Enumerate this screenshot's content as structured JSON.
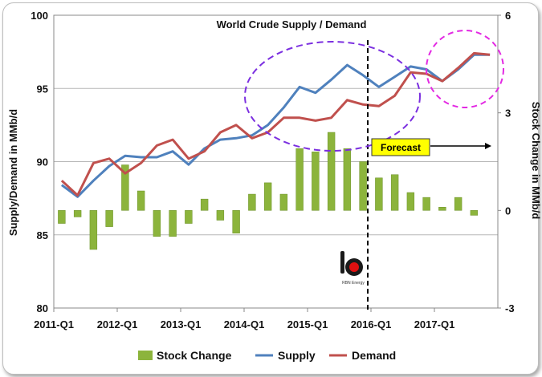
{
  "chart_data": {
    "type": "bar+line",
    "title": "World Crude Supply / Demand",
    "ylabel_left": "Supply/Demand in MMb/d",
    "ylabel_right": "Stock Change in MMb/d",
    "ylim_left": [
      80,
      100
    ],
    "ylim_right": [
      -3,
      6
    ],
    "yticks_left": [
      "80",
      "85",
      "90",
      "95",
      "100"
    ],
    "yticks_right": [
      "-3",
      "0",
      "3",
      "6"
    ],
    "x_tick_labels": [
      "2011-Q1",
      "2012-Q1",
      "2013-Q1",
      "2014-Q1",
      "2015-Q1",
      "2016-Q1",
      "2017-Q1"
    ],
    "quarters": [
      "2011-Q1",
      "2011-Q2",
      "2011-Q3",
      "2011-Q4",
      "2012-Q1",
      "2012-Q2",
      "2012-Q3",
      "2012-Q4",
      "2013-Q1",
      "2013-Q2",
      "2013-Q3",
      "2013-Q4",
      "2014-Q1",
      "2014-Q2",
      "2014-Q3",
      "2014-Q4",
      "2015-Q1",
      "2015-Q2",
      "2015-Q3",
      "2015-Q4",
      "2016-Q1",
      "2016-Q2",
      "2016-Q3",
      "2016-Q4",
      "2017-Q1",
      "2017-Q2",
      "2017-Q3",
      "2017-Q4"
    ],
    "series": [
      {
        "name": "Stock Change",
        "kind": "bar",
        "axis": "right",
        "color": "#8cb43c",
        "values": [
          -0.4,
          -0.2,
          -1.2,
          -0.5,
          1.4,
          0.6,
          -0.8,
          -0.8,
          -0.4,
          0.35,
          -0.3,
          -0.7,
          0.5,
          0.85,
          0.5,
          1.9,
          1.8,
          2.4,
          1.9,
          1.5,
          1.0,
          1.1,
          0.55,
          0.4,
          0.1,
          0.4,
          -0.15,
          0.0
        ]
      },
      {
        "name": "Supply",
        "kind": "line",
        "axis": "left",
        "color": "#4f81bd",
        "values": [
          88.4,
          87.6,
          88.7,
          89.7,
          90.4,
          90.3,
          90.3,
          90.7,
          89.8,
          90.9,
          91.5,
          91.6,
          91.8,
          92.5,
          93.7,
          95.1,
          94.7,
          95.6,
          96.6,
          95.9,
          95.1,
          95.8,
          96.5,
          96.3,
          95.5,
          96.3,
          97.3,
          97.3
        ]
      },
      {
        "name": "Demand",
        "kind": "line",
        "axis": "left",
        "color": "#c0504d",
        "values": [
          88.7,
          87.7,
          89.9,
          90.2,
          89.2,
          89.9,
          91.1,
          91.5,
          90.2,
          90.7,
          92.0,
          92.5,
          91.6,
          92.0,
          93.0,
          93.0,
          92.8,
          93.0,
          94.2,
          93.9,
          93.8,
          94.5,
          96.1,
          96.0,
          95.5,
          96.4,
          97.4,
          97.3
        ]
      }
    ],
    "forecast_label": "Forecast",
    "forecast_start": "2016-Q1",
    "legend_position": "bottom",
    "grid": true
  },
  "legend": [
    {
      "label": "Stock Change",
      "color": "#8cb43c"
    },
    {
      "label": "Supply",
      "color": "#4f81bd"
    },
    {
      "label": "Demand",
      "color": "#c0504d"
    }
  ],
  "logo": {
    "caption": "RBN Energy"
  }
}
